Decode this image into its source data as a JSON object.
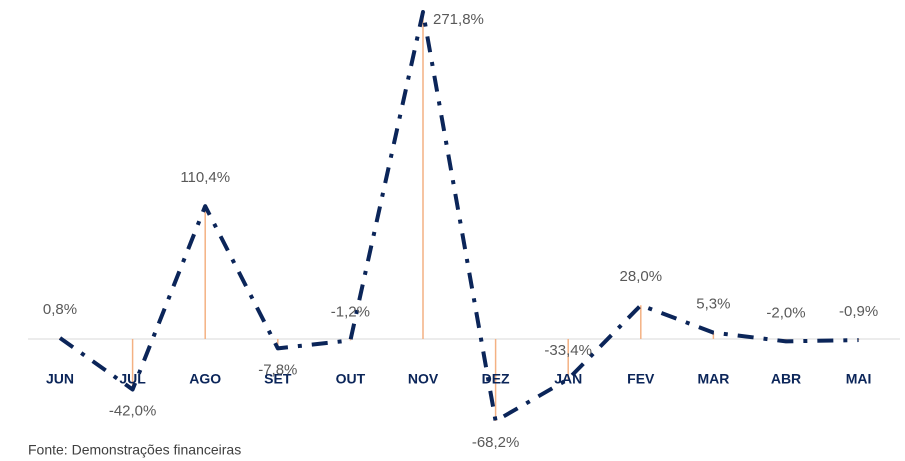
{
  "chart_data": {
    "type": "line",
    "categories": [
      "JUN",
      "JUL",
      "AGO",
      "SET",
      "OUT",
      "NOV",
      "DEZ",
      "JAN",
      "FEV",
      "MAR",
      "ABR",
      "MAI"
    ],
    "series": [
      {
        "color": "#0b2559",
        "values": [
          0.8,
          -42.0,
          110.4,
          -7.8,
          -1.2,
          271.8,
          -68.2,
          -33.4,
          28.0,
          5.3,
          -2.0,
          -0.9
        ],
        "value_labels": [
          "0,8%",
          "-42,0%",
          "110,4%",
          "-7,8%",
          "-1,2%",
          "271,8%",
          "-68,2%",
          "-33,4%",
          "28,0%",
          "5,3%",
          "-2,0%",
          "-0,9%"
        ]
      }
    ],
    "drop_line_color": "#f4b183",
    "source": "Fonte: Demonstrações financeiras"
  }
}
